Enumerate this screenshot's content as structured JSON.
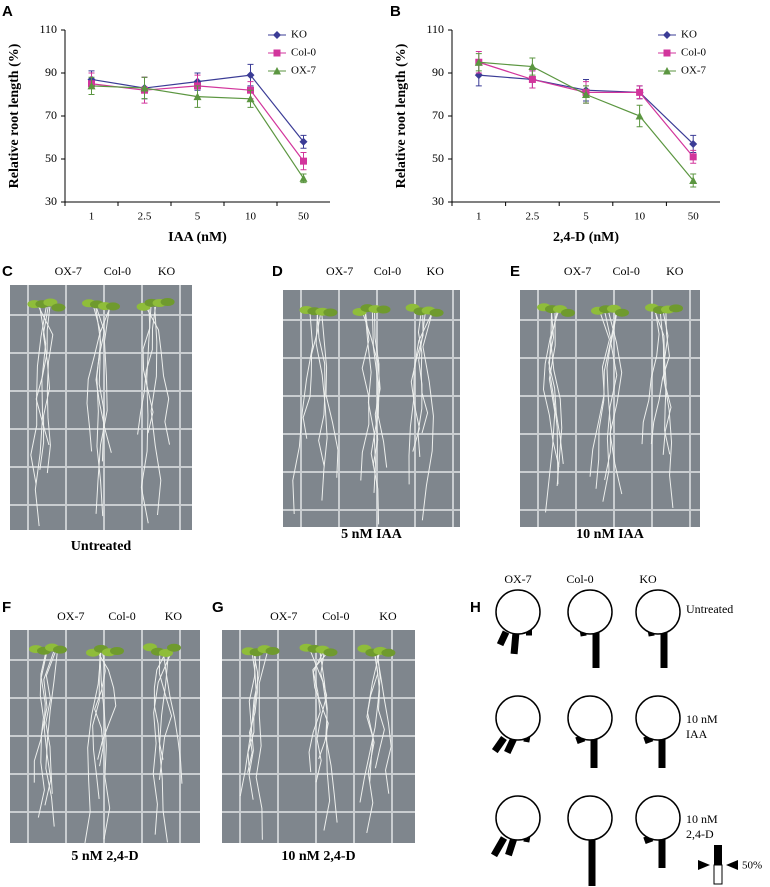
{
  "chart_data": [
    {
      "type": "line",
      "panel": "A",
      "xlabel": "IAA (nM)",
      "ylabel": "Relative root length (%)",
      "categories": [
        "1",
        "2.5",
        "5",
        "10",
        "50"
      ],
      "ylim": [
        30,
        110
      ],
      "yticks": [
        30,
        50,
        70,
        90,
        110
      ],
      "series": [
        {
          "name": "KO",
          "color": "#3b3c96",
          "marker": "diamond",
          "values": [
            87,
            83,
            86,
            89,
            58
          ],
          "errors": [
            4,
            5,
            4,
            5,
            3
          ]
        },
        {
          "name": "Col-0",
          "color": "#d2359c",
          "marker": "square",
          "values": [
            85,
            82,
            84,
            82,
            49
          ],
          "errors": [
            5,
            6,
            5,
            4,
            4
          ]
        },
        {
          "name": "OX-7",
          "color": "#5b9640",
          "marker": "triangle",
          "values": [
            84,
            83,
            79,
            78,
            41
          ],
          "errors": [
            4,
            5,
            5,
            4,
            2
          ]
        }
      ]
    },
    {
      "type": "line",
      "panel": "B",
      "xlabel": "2,4-D (nM)",
      "ylabel": "Relative root length (%)",
      "categories": [
        "1",
        "2.5",
        "5",
        "10",
        "50"
      ],
      "ylim": [
        30,
        110
      ],
      "yticks": [
        30,
        50,
        70,
        90,
        110
      ],
      "series": [
        {
          "name": "KO",
          "color": "#3b3c96",
          "marker": "diamond",
          "values": [
            89,
            87,
            82,
            81,
            57
          ],
          "errors": [
            5,
            4,
            5,
            3,
            4
          ]
        },
        {
          "name": "Col-0",
          "color": "#d2359c",
          "marker": "square",
          "values": [
            95,
            87,
            81,
            81,
            51
          ],
          "errors": [
            5,
            4,
            5,
            3,
            3
          ]
        },
        {
          "name": "OX-7",
          "color": "#5b9640",
          "marker": "triangle",
          "values": [
            95,
            93,
            80,
            70,
            40
          ],
          "errors": [
            4,
            4,
            4,
            5,
            3
          ]
        }
      ]
    }
  ],
  "photos": [
    {
      "panel": "C",
      "columns": [
        "OX-7",
        "Col-0",
        "KO"
      ],
      "caption": "Untreated"
    },
    {
      "panel": "D",
      "columns": [
        "OX-7",
        "Col-0",
        "KO"
      ],
      "caption": "5 nM IAA"
    },
    {
      "panel": "E",
      "columns": [
        "OX-7",
        "Col-0",
        "KO"
      ],
      "caption": "10 nM IAA"
    },
    {
      "panel": "F",
      "columns": [
        "OX-7",
        "Col-0",
        "KO"
      ],
      "caption": "5 nM 2,4-D"
    },
    {
      "panel": "G",
      "columns": [
        "OX-7",
        "Col-0",
        "KO"
      ],
      "caption": "10 nM 2,4-D"
    }
  ],
  "diagram": {
    "panel": "H",
    "columns": [
      "OX-7",
      "Col-0",
      "KO"
    ],
    "rows": [
      [
        "Untreated"
      ],
      [
        "10 nM",
        "IAA"
      ],
      [
        "10 nM",
        "2,4-D"
      ]
    ],
    "scale_label": "50%"
  }
}
